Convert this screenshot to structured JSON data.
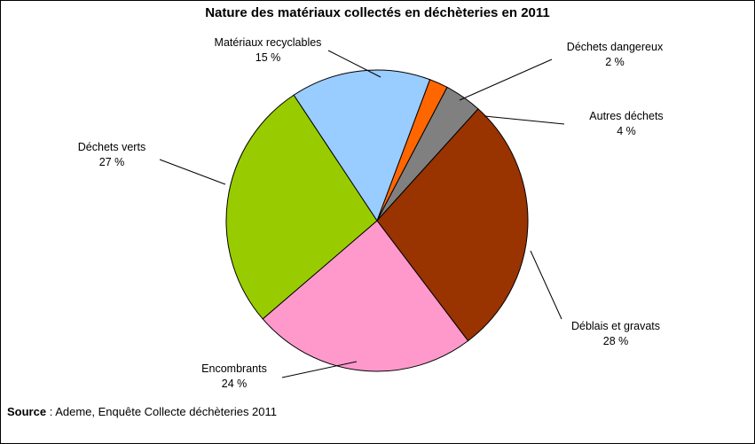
{
  "chart_data": {
    "type": "pie",
    "title": "Nature des matériaux collectés en déchèteries en 2011",
    "categories": [
      "Déchets dangereux",
      "Autres déchets",
      "Déblais et gravats",
      "Encombrants",
      "Déchets verts",
      "Matériaux recyclables"
    ],
    "values": [
      2,
      4,
      28,
      24,
      27,
      15
    ],
    "value_labels": [
      "2 %",
      "4 %",
      "28 %",
      "24 %",
      "27 %",
      "15 %"
    ],
    "colors": [
      "#ff6600",
      "#808080",
      "#993300",
      "#ff99cc",
      "#99cc00",
      "#99ccff"
    ],
    "legend": "none (labels with leader lines)"
  },
  "source": {
    "label": "Source",
    "text": " : Ademe, Enquête Collecte déchèteries 2011"
  }
}
